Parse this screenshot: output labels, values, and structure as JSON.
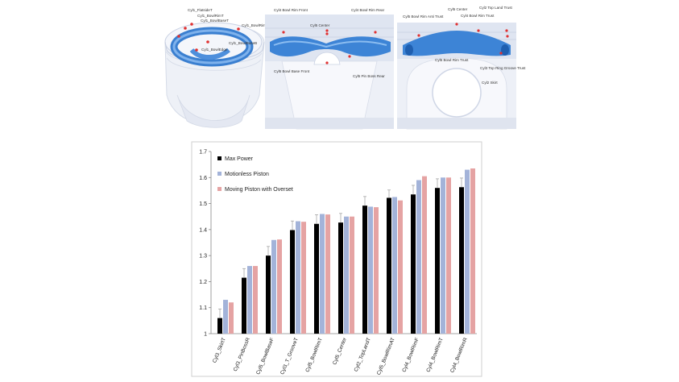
{
  "views": {
    "left": {
      "labels": [
        "Cyl1_FlatsideT",
        "Cyl1_BowlRimT",
        "Cyl1_BowlBaseT",
        "Cyl1_BowlRimB",
        "Cyl1_BowlBaseB",
        "Cyl1_BowlEdge"
      ]
    },
    "middle": {
      "labels": [
        "Cyl4 Bowl Rim Front",
        "Cyl4 Bowl Rim Rear",
        "Cyl5 Center",
        "Cyl5 Bowl Base Front",
        "Cyl5 Pin Boss Rear"
      ]
    },
    "right": {
      "labels": [
        "Cyl5 Bowl Rim Anti Trust",
        "Cyl5 Center",
        "Cyl2 Top Land Trust",
        "Cyl4 Bowl Rim Trust",
        "Cyl5 Bowl Rim Trust",
        "Cyl3 Top Ring Groove Trust",
        "Cyl2 Skirt"
      ]
    }
  },
  "colors": {
    "max_power": "#000000",
    "motionless": "#a3b3d9",
    "moving": "#e5a3a3"
  },
  "chart_data": {
    "type": "bar",
    "categories": [
      "Cyl3_SkirtT",
      "Cyl3_PinBossR",
      "Cyl5_BowlBaseF",
      "Cyl3_T_GrooveT",
      "Cyl5_BowlRimT",
      "Cyl5_Center",
      "Cyl2_TopLandT",
      "Cyl5_BowlRimAT",
      "Cyl4_BowlRimF",
      "Cyl4_BowlRimT",
      "Cyl4_BowlRimR"
    ],
    "series": [
      {
        "name": "Max Power",
        "values": [
          1.06,
          1.215,
          1.3,
          1.398,
          1.422,
          1.427,
          1.492,
          1.522,
          1.535,
          1.56,
          1.563
        ],
        "errors": [
          0.035,
          0.035,
          0.035,
          0.035,
          0.035,
          0.035,
          0.035,
          0.03,
          0.035,
          0.035,
          0.035
        ]
      },
      {
        "name": "Motionless Piston",
        "values": [
          1.13,
          1.26,
          1.36,
          1.432,
          1.46,
          1.45,
          1.488,
          1.525,
          1.59,
          1.6,
          1.63
        ]
      },
      {
        "name": "Moving Piston with Overset",
        "values": [
          1.12,
          1.26,
          1.362,
          1.43,
          1.458,
          1.45,
          1.486,
          1.512,
          1.605,
          1.6,
          1.635
        ]
      }
    ],
    "yticks": [
      "1",
      "1.1",
      "1.2",
      "1.3",
      "1.4",
      "1.5",
      "1.6",
      "1.7"
    ],
    "ylim": [
      1,
      1.7
    ],
    "legend": "top-left"
  }
}
